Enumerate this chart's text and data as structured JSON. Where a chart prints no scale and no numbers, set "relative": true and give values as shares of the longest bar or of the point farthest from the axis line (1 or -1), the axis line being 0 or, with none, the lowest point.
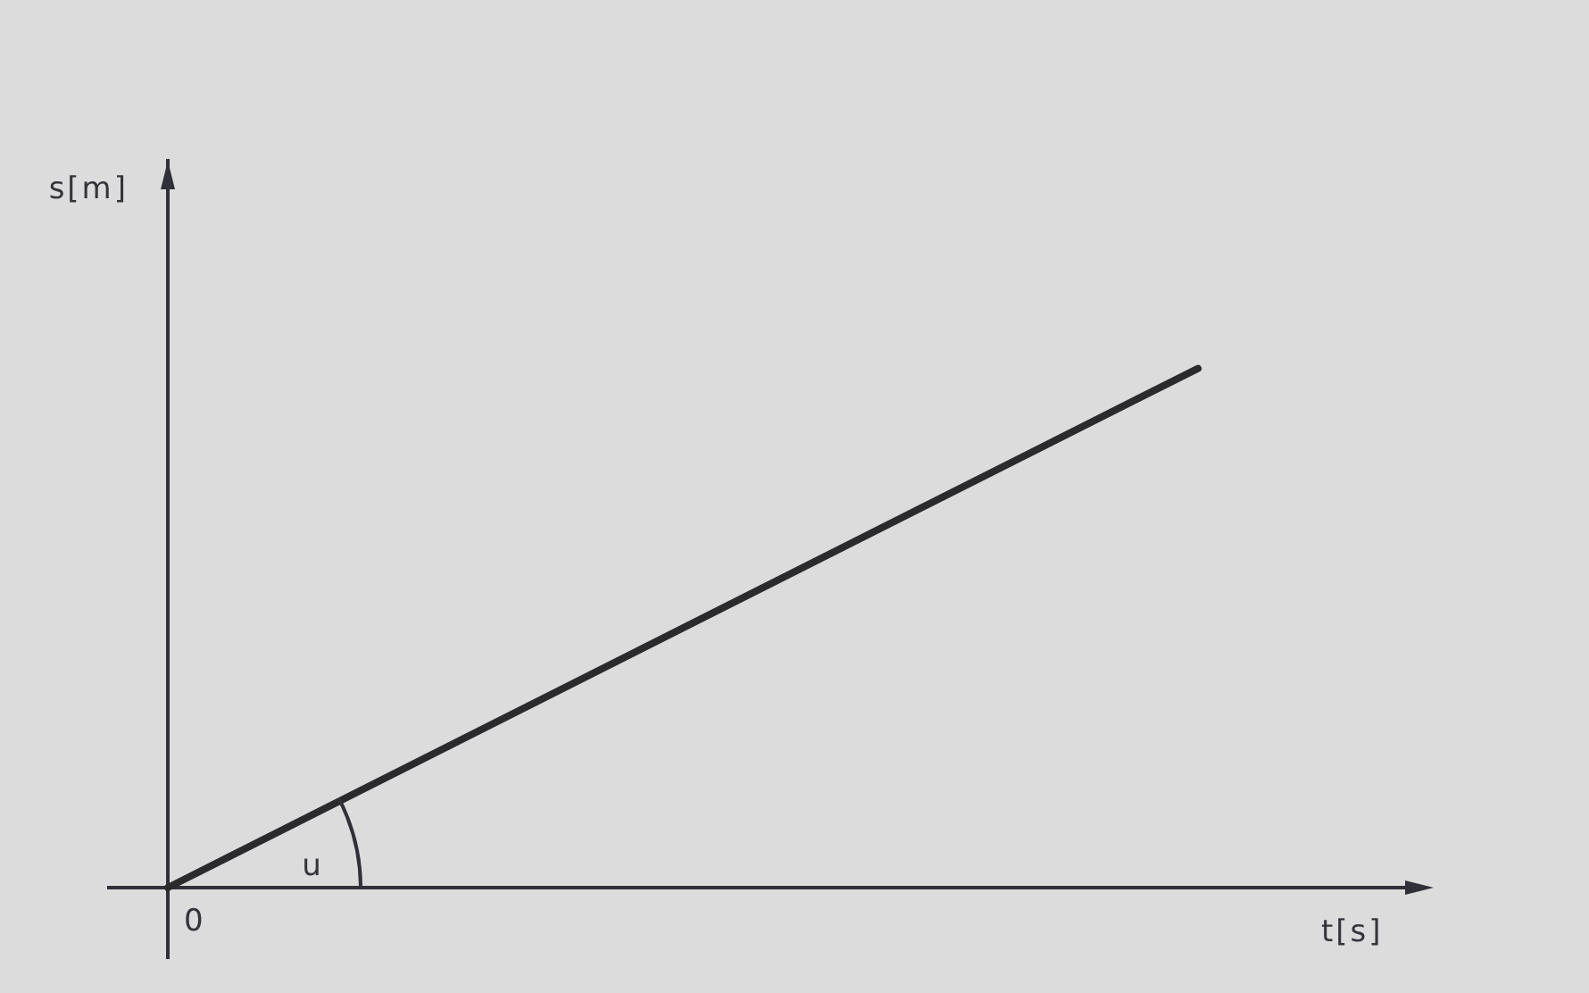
{
  "chart_data": {
    "type": "line",
    "xlabel": "t[s]",
    "categories": [
      null,
      null
    ],
    "series": [
      {
        "color": "#2b2b2e",
        "values": [
          0,
          1
        ]
      }
    ],
    "relative": true,
    "annotations": [
      "s[m]",
      "u",
      "0"
    ],
    "grid": false,
    "legend": false,
    "marker": "none",
    "line_style": "solid"
  }
}
